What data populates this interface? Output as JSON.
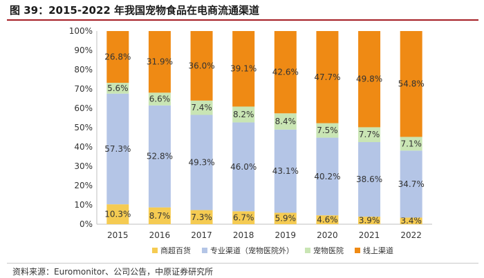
{
  "title": "图 39：2015-2022 年我国宠物食品在电商流通渠道",
  "source": "资料来源：Euromonitor、公司公告，中原证券研究所",
  "chart_data": {
    "type": "bar",
    "stacked": true,
    "percent": true,
    "categories": [
      "2015",
      "2016",
      "2017",
      "2018",
      "2019",
      "2020",
      "2021",
      "2022"
    ],
    "ylim": [
      0,
      100
    ],
    "yticks": [
      "0%",
      "10%",
      "20%",
      "30%",
      "40%",
      "50%",
      "60%",
      "70%",
      "80%",
      "90%",
      "100%"
    ],
    "grid": false,
    "legend_position": "bottom",
    "series": [
      {
        "name": "商超百货",
        "color": "#f5cb52",
        "values": [
          10.3,
          8.7,
          7.3,
          6.7,
          5.9,
          4.6,
          3.9,
          3.4
        ]
      },
      {
        "name": "专业渠道（宠物医院外）",
        "color": "#b4c5e6",
        "values": [
          57.3,
          52.8,
          49.3,
          46.0,
          43.1,
          40.2,
          38.6,
          34.7
        ]
      },
      {
        "name": "宠物医院",
        "color": "#c9e5b4",
        "values": [
          5.6,
          6.6,
          7.4,
          8.2,
          8.4,
          7.5,
          7.7,
          7.1
        ]
      },
      {
        "name": "线上渠道",
        "color": "#ef8a14",
        "values": [
          26.8,
          31.9,
          36.0,
          39.1,
          42.6,
          47.7,
          49.8,
          54.8
        ]
      }
    ]
  }
}
